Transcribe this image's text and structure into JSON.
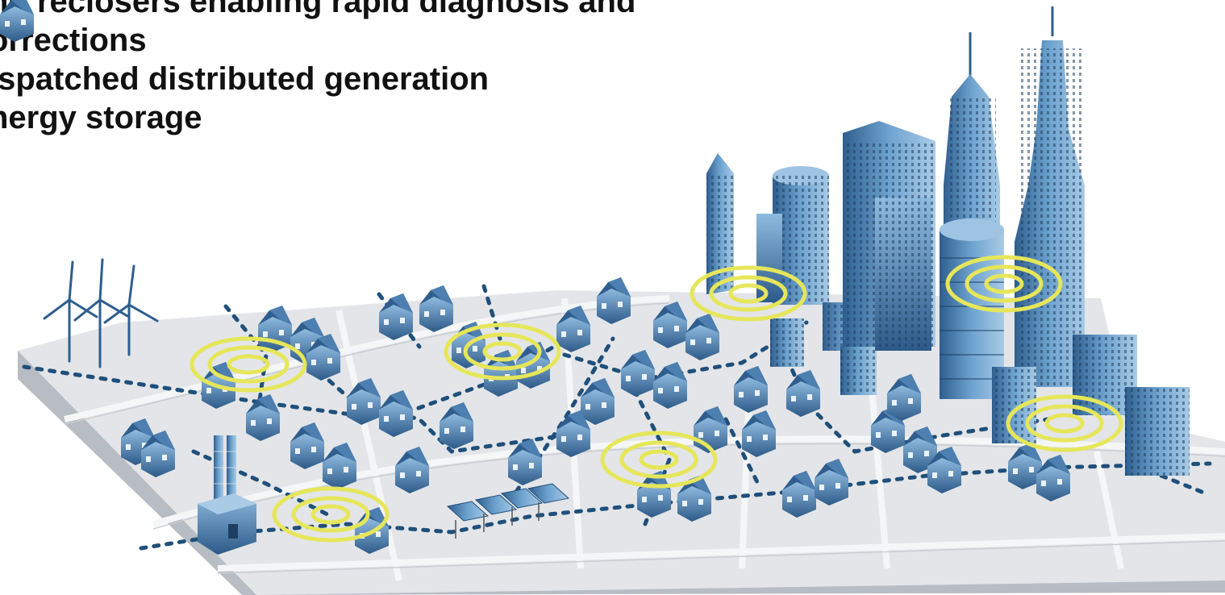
{
  "slide": {
    "bullet_lines": [
      "nd reclosers enabling rapid diagnosis and",
      "orrections",
      "ispatched distributed generation",
      "nergy storage"
    ]
  },
  "illustration": {
    "elements": [
      "wind-turbine",
      "smokestack-plant",
      "solar-panel-array",
      "house",
      "office-tower",
      "wireless-signal-ring",
      "dotted-grid-line"
    ],
    "colors": {
      "ground": "#e3e5e8",
      "ground_edge": "#b8bdc4",
      "road": "#f2f3f5",
      "building_dark": "#2f5e8e",
      "building_light": "#6ea3cf",
      "signal_ring": "#e6e65a",
      "grid_line": "#1f4f7a"
    }
  }
}
